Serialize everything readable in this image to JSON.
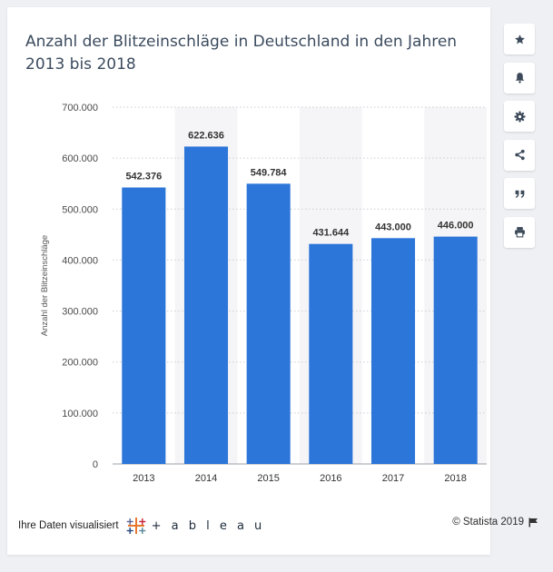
{
  "title": "Anzahl der Blitzeinschläge in Deutschland in den Jahren 2013 bis 2018",
  "footer": {
    "visualized_text": "Ihre Daten visualisiert",
    "tableau_wordmark": "+ a b l e a u",
    "copyright": "© Statista 2019"
  },
  "sidebar": {
    "icons": [
      "star-icon",
      "bell-icon",
      "gear-icon",
      "share-icon",
      "quote-icon",
      "print-icon"
    ]
  },
  "colors": {
    "bar": "#2c75d9",
    "title": "#3b4b5e",
    "band": "#f5f5f7",
    "sidebar_icon": "#3d4a5a"
  },
  "chart_data": {
    "type": "bar",
    "categories": [
      "2013",
      "2014",
      "2015",
      "2016",
      "2017",
      "2018"
    ],
    "values": [
      542376,
      622636,
      549784,
      431644,
      443000,
      446000
    ],
    "data_labels": [
      "542.376",
      "622.636",
      "549.784",
      "431.644",
      "443.000",
      "446.000"
    ],
    "title": "Anzahl der Blitzeinschläge in Deutschland in den Jahren 2013 bis 2018",
    "xlabel": "",
    "ylabel": "Anzahl der Blitzeinschläge",
    "ylim": [
      0,
      700000
    ],
    "yticks": [
      0,
      100000,
      200000,
      300000,
      400000,
      500000,
      600000,
      700000
    ],
    "ytick_labels": [
      "0",
      "100.000",
      "200.000",
      "300.000",
      "400.000",
      "500.000",
      "600.000",
      "700.000"
    ],
    "grid": true,
    "legend": "none"
  }
}
